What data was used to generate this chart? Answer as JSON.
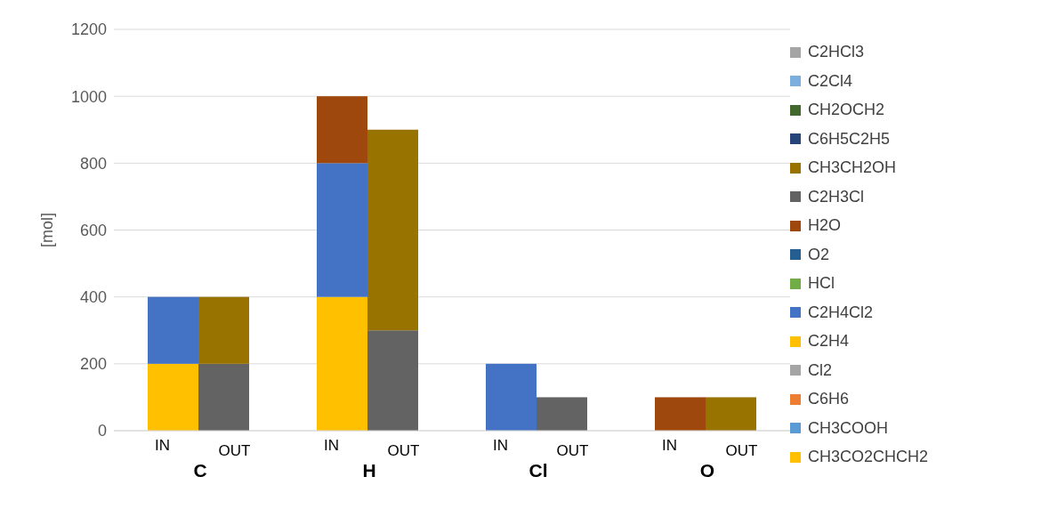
{
  "chart_data": {
    "type": "bar",
    "stacked": true,
    "ylabel": "[mol]",
    "categories": [
      "IN",
      "OUT",
      "IN",
      "OUT",
      "IN",
      "OUT",
      "IN",
      "OUT"
    ],
    "annotations": [
      "C",
      "H",
      "Cl",
      "O"
    ],
    "ylim": [
      0,
      1200
    ],
    "yticks": [
      0,
      200,
      400,
      600,
      800,
      1000,
      1200
    ],
    "grid": "y",
    "legend": "right",
    "series": [
      {
        "name": "CH3CO2CHCH2",
        "color": "#ffc000",
        "values": [
          null,
          null,
          null,
          null,
          null,
          null,
          null,
          null
        ]
      },
      {
        "name": "CH3COOH",
        "color": "#5b9bd5",
        "values": [
          null,
          null,
          null,
          null,
          null,
          null,
          null,
          null
        ]
      },
      {
        "name": "C6H6",
        "color": "#ed7d31",
        "values": [
          null,
          null,
          null,
          null,
          null,
          null,
          null,
          null
        ]
      },
      {
        "name": "Cl2",
        "color": "#a5a5a5",
        "values": [
          null,
          null,
          null,
          null,
          null,
          null,
          null,
          null
        ]
      },
      {
        "name": "C2H4",
        "color": "#ffc000",
        "values": [
          200,
          null,
          400,
          null,
          null,
          null,
          null,
          null
        ]
      },
      {
        "name": "C2H4Cl2",
        "color": "#4472c4",
        "values": [
          200,
          null,
          400,
          null,
          200,
          null,
          null,
          null
        ]
      },
      {
        "name": "HCl",
        "color": "#70ad47",
        "values": [
          null,
          null,
          null,
          null,
          null,
          null,
          null,
          null
        ]
      },
      {
        "name": "O2",
        "color": "#255e91",
        "values": [
          null,
          null,
          null,
          null,
          null,
          null,
          null,
          null
        ]
      },
      {
        "name": "H2O",
        "color": "#9e480e",
        "values": [
          null,
          null,
          200,
          null,
          null,
          null,
          100,
          null
        ]
      },
      {
        "name": "C2H3Cl",
        "color": "#636363",
        "values": [
          null,
          200,
          null,
          300,
          null,
          100,
          null,
          null
        ]
      },
      {
        "name": "CH3CH2OH",
        "color": "#997300",
        "values": [
          null,
          200,
          null,
          600,
          null,
          null,
          null,
          100
        ]
      },
      {
        "name": "C6H5C2H5",
        "color": "#264478",
        "values": [
          null,
          null,
          null,
          null,
          null,
          null,
          null,
          null
        ]
      },
      {
        "name": "CH2OCH2",
        "color": "#43682b",
        "values": [
          null,
          null,
          null,
          null,
          null,
          null,
          null,
          null
        ]
      },
      {
        "name": "C2Cl4",
        "color": "#7cafdd",
        "values": [
          null,
          null,
          null,
          null,
          null,
          null,
          null,
          null
        ]
      },
      {
        "name": "C2HCl3",
        "color": "#a5a5a5",
        "values": [
          null,
          null,
          null,
          null,
          null,
          null,
          null,
          null
        ]
      }
    ]
  }
}
